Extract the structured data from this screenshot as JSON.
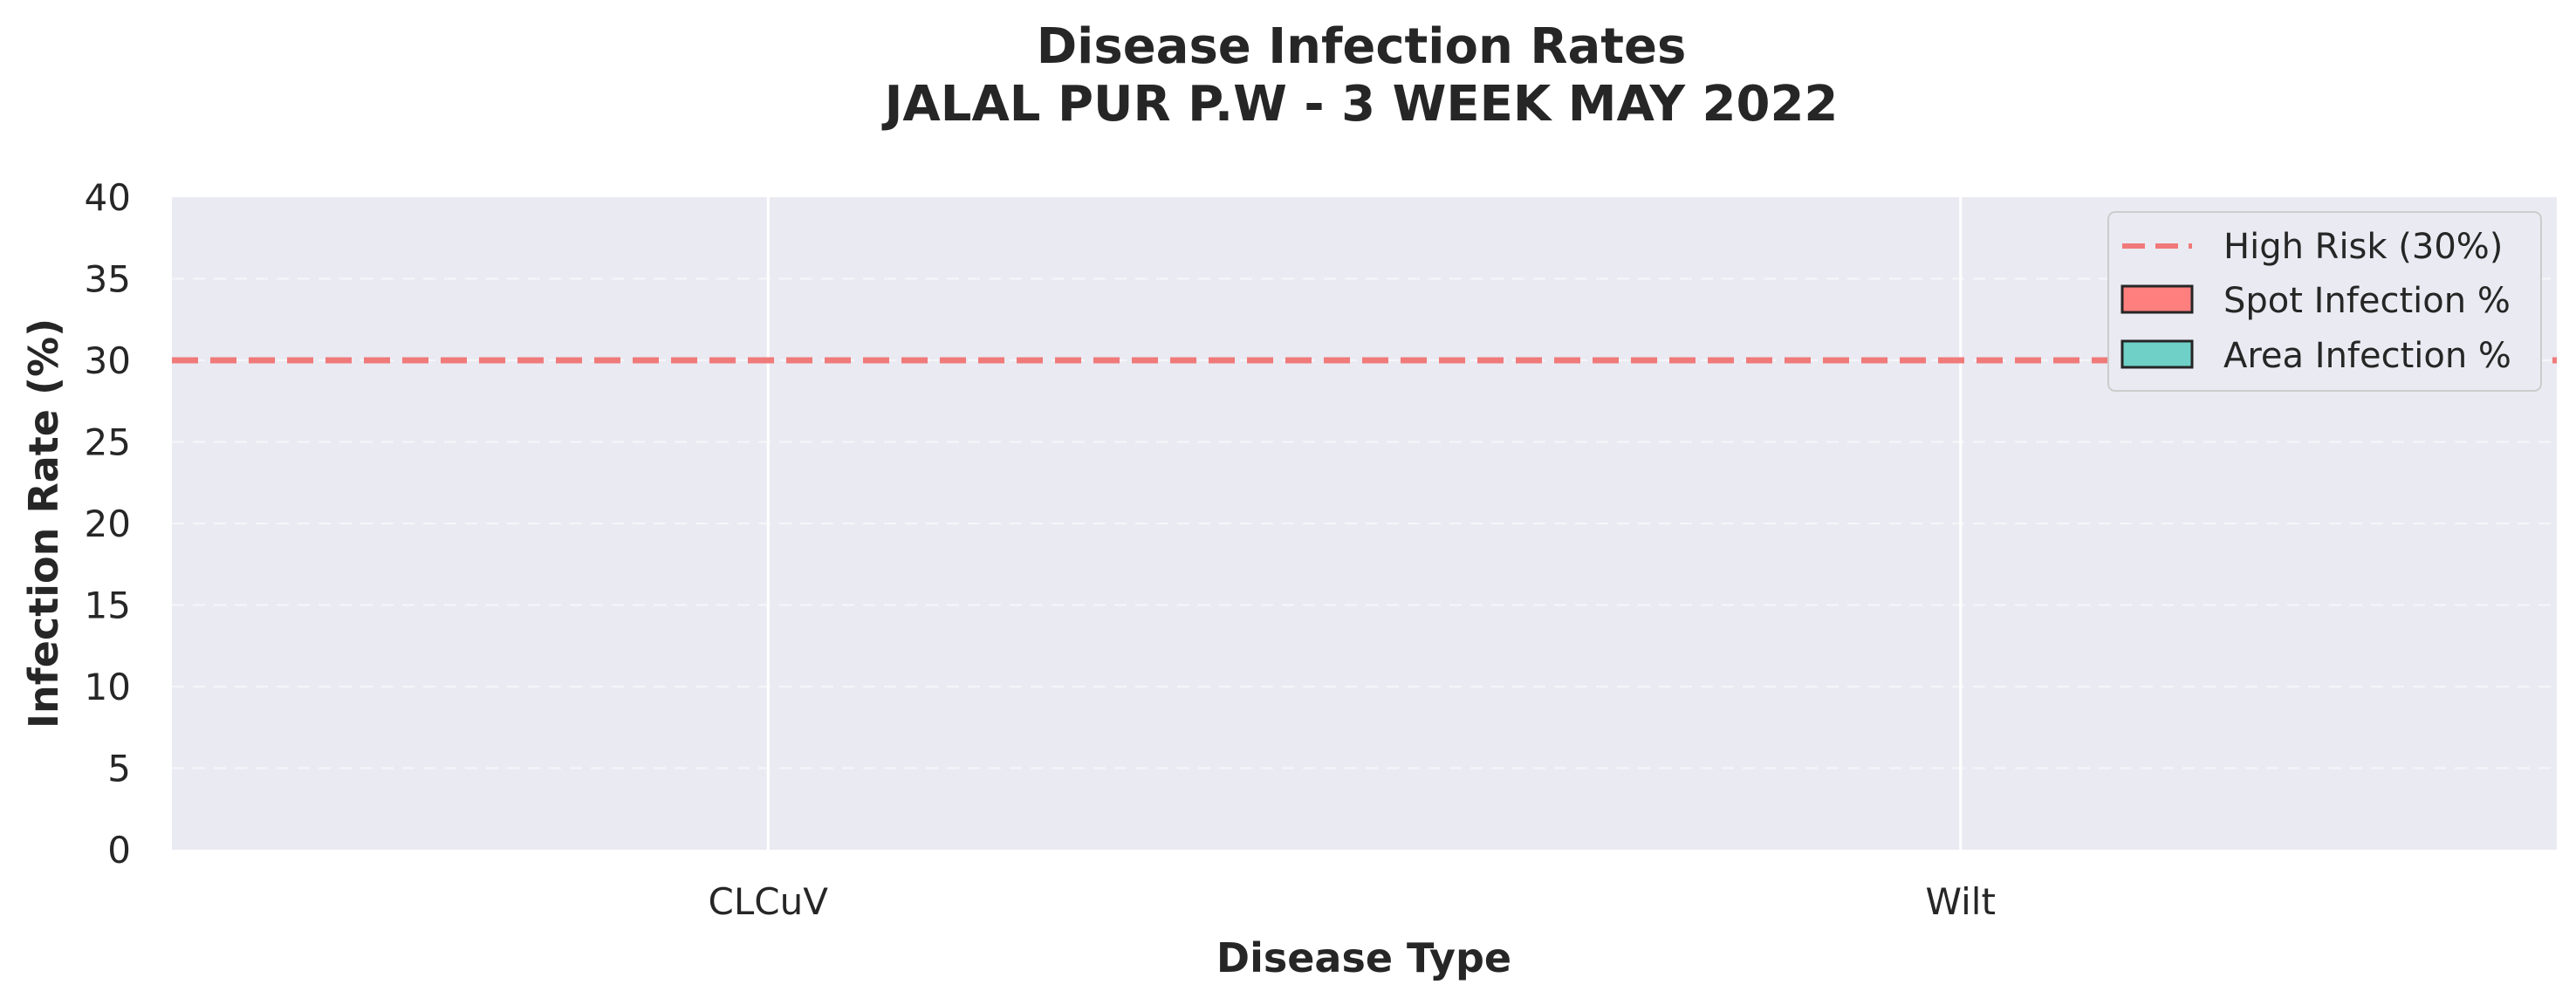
{
  "chart_data": {
    "type": "bar",
    "title": "Disease Infection Rates",
    "subtitle": "JALAL PUR P.W - 3 WEEK MAY 2022",
    "xlabel": "Disease Type",
    "ylabel": "Infection Rate (%)",
    "categories": [
      "CLCuV",
      "Wilt"
    ],
    "series": [
      {
        "name": "Spot Infection %",
        "values": [
          0,
          0
        ],
        "color": "#ff7f7f"
      },
      {
        "name": "Area Infection %",
        "values": [
          0,
          0
        ],
        "color": "#6fd0c8"
      }
    ],
    "reference_line": {
      "label": "High Risk (30%)",
      "value": 30,
      "color": "#f07a7a",
      "style": "dashed"
    },
    "ylim": [
      0,
      40
    ],
    "yticks": [
      0,
      5,
      10,
      15,
      20,
      25,
      30,
      35,
      40
    ],
    "grid": true,
    "legend_position": "top-right",
    "plot_background": "#eaeaf2"
  }
}
